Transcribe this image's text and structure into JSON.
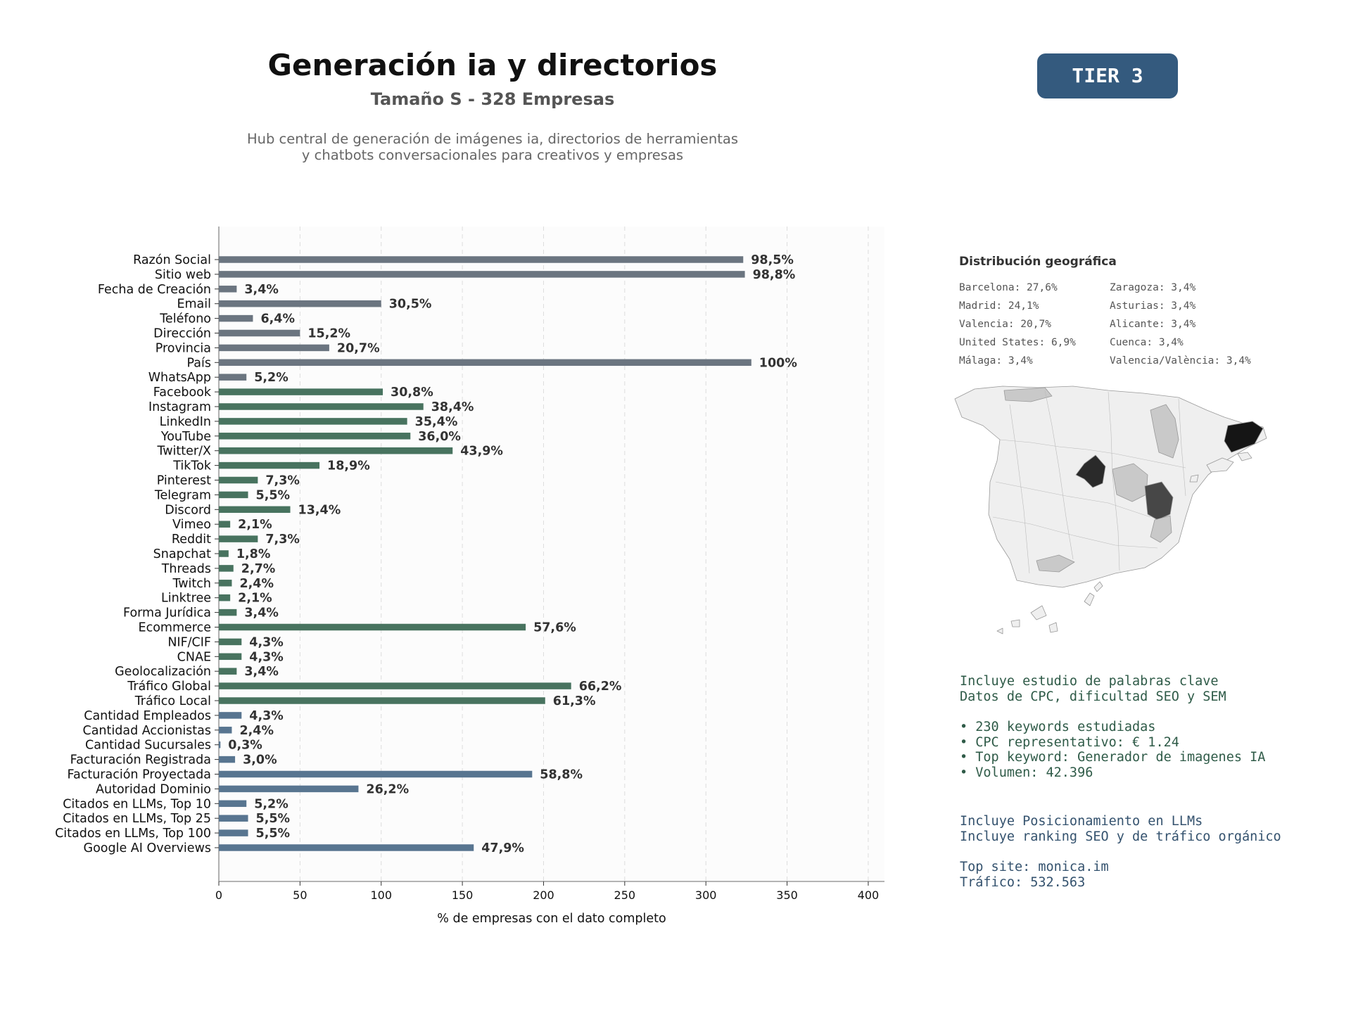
{
  "header": {
    "title": "Generación ia y directorios",
    "subtitle": "Tamaño S - 328 Empresas",
    "description_line1": "Hub central de generación de imágenes ia, directorios de herramientas",
    "description_line2": "y chatbots conversacionales para creativos y empresas",
    "tier_badge": "TIER 3"
  },
  "colors": {
    "gray": "#6b7580",
    "green": "#48735f",
    "blue": "#587590",
    "tier_bg": "#345a7e"
  },
  "chart_data": {
    "type": "bar",
    "orientation": "horizontal",
    "xlabel": "% de empresas con el dato completo",
    "xlim": [
      0,
      410
    ],
    "xticks": [
      0,
      50,
      100,
      150,
      200,
      250,
      300,
      350,
      400
    ],
    "grid": "vertical dashed",
    "categories": [
      "Razón Social",
      "Sitio web",
      "Fecha de Creación",
      "Email",
      "Teléfono",
      "Dirección",
      "Provincia",
      "País",
      "WhatsApp",
      "Facebook",
      "Instagram",
      "LinkedIn",
      "YouTube",
      "Twitter/X",
      "TikTok",
      "Pinterest",
      "Telegram",
      "Discord",
      "Vimeo",
      "Reddit",
      "Snapchat",
      "Threads",
      "Twitch",
      "Linktree",
      "Forma Jurídica",
      "Ecommerce",
      "NIF/CIF",
      "CNAE",
      "Geolocalización",
      "Tráfico Global",
      "Tráfico Local",
      "Cantidad Empleados",
      "Cantidad Accionistas",
      "Cantidad Sucursales",
      "Facturación Registrada",
      "Facturación Proyectada",
      "Autoridad Dominio",
      "Citados en LLMs, Top 10",
      "Citados en LLMs, Top 25",
      "Citados en LLMs, Top 100",
      "Google AI Overviews"
    ],
    "values": [
      323,
      324,
      11,
      100,
      21,
      50,
      68,
      328,
      17,
      101,
      126,
      116,
      118,
      144,
      62,
      24,
      18,
      44,
      7,
      24,
      6,
      9,
      8,
      7,
      11,
      189,
      14,
      14,
      11,
      217,
      201,
      14,
      8,
      1,
      10,
      193,
      86,
      17,
      18,
      18,
      157
    ],
    "labels": [
      "98,5%",
      "98,8%",
      "3,4%",
      "30,5%",
      "6,4%",
      "15,2%",
      "20,7%",
      "100%",
      "5,2%",
      "30,8%",
      "38,4%",
      "35,4%",
      "36,0%",
      "43,9%",
      "18,9%",
      "7,3%",
      "5,5%",
      "13,4%",
      "2,1%",
      "7,3%",
      "1,8%",
      "2,7%",
      "2,4%",
      "2,1%",
      "3,4%",
      "57,6%",
      "4,3%",
      "4,3%",
      "3,4%",
      "66,2%",
      "61,3%",
      "4,3%",
      "2,4%",
      "0,3%",
      "3,0%",
      "58,8%",
      "26,2%",
      "5,2%",
      "5,5%",
      "5,5%",
      "47,9%"
    ],
    "groups": [
      "gray",
      "gray",
      "gray",
      "gray",
      "gray",
      "gray",
      "gray",
      "gray",
      "gray",
      "green",
      "green",
      "green",
      "green",
      "green",
      "green",
      "green",
      "green",
      "green",
      "green",
      "green",
      "green",
      "green",
      "green",
      "green",
      "green",
      "green",
      "green",
      "green",
      "green",
      "green",
      "green",
      "blue",
      "blue",
      "blue",
      "blue",
      "blue",
      "blue",
      "blue",
      "blue",
      "blue",
      "blue"
    ]
  },
  "geo": {
    "title": "Distribución geográfica",
    "items": [
      "Barcelona: 27,6%",
      "Zaragoza: 3,4%",
      "Madrid: 24,1%",
      "Asturias: 3,4%",
      "Valencia: 20,7%",
      "Alicante: 3,4%",
      "United States: 6,9%",
      "Cuenca: 3,4%",
      "Málaga: 3,4%",
      "Valencia/València: 3,4%"
    ]
  },
  "keywords_block": {
    "line1": "Incluye estudio de palabras clave",
    "line2": "Datos de CPC, dificultad SEO y SEM",
    "bullet1": "• 230 keywords estudiadas",
    "bullet2": "• CPC representativo: € 1.24",
    "bullet3": "• Top keyword: Generador de imagenes IA",
    "bullet4": "• Volumen: 42.396"
  },
  "llm_block": {
    "line1": "Incluye Posicionamiento en LLMs",
    "line2": "Incluye ranking SEO y de tráfico orgánico",
    "line3": "Top site: monica.im",
    "line4": "Tráfico: 532.563"
  }
}
